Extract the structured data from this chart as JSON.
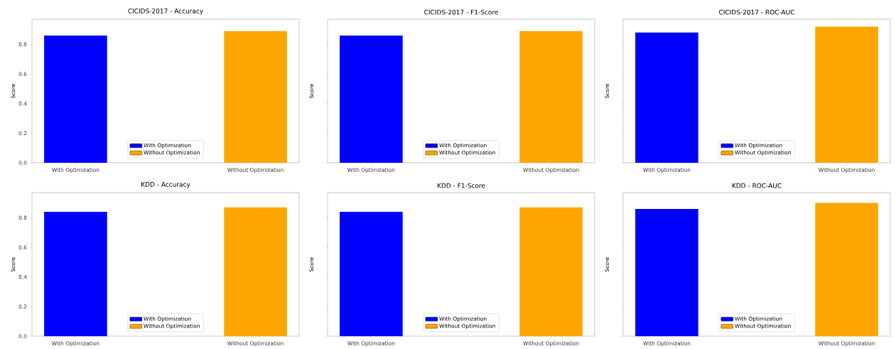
{
  "chart_data": [
    {
      "type": "bar",
      "title": "CICIDS-2017 - Accuracy",
      "ylabel": "Score",
      "categories": [
        "With Optimization",
        "Without Optimization"
      ],
      "series": [
        {
          "name": "With Optimization",
          "color": "#0000ff",
          "values": [
            0.86,
            null
          ]
        },
        {
          "name": "Without Optimization",
          "color": "#ffa500",
          "values": [
            null,
            0.89
          ]
        }
      ],
      "ylim": [
        0,
        0.97
      ],
      "yticks": [
        {
          "value": 0,
          "label": "0.0"
        },
        {
          "value": 0.2,
          "label": "0.2"
        },
        {
          "value": 0.4,
          "label": "0.4"
        },
        {
          "value": 0.6,
          "label": "0.6"
        },
        {
          "value": 0.8,
          "label": "0.8"
        }
      ],
      "legend": "bottom"
    },
    {
      "type": "bar",
      "title": "CICIDS-2017 - F1-Score",
      "ylabel": "Score",
      "categories": [
        "With Optimization",
        "Without Optimization"
      ],
      "series": [
        {
          "name": "With Optimization",
          "color": "#0000ff",
          "values": [
            0.86,
            null
          ]
        },
        {
          "name": "Without Optimization",
          "color": "#ffa500",
          "values": [
            null,
            0.89
          ]
        }
      ],
      "ylim": [
        0,
        0.97
      ],
      "yticks": [
        {
          "value": 0,
          "label": null
        },
        {
          "value": 0.2,
          "label": null
        },
        {
          "value": 0.4,
          "label": null
        },
        {
          "value": 0.6,
          "label": null
        },
        {
          "value": 0.8,
          "label": null
        }
      ],
      "legend": "bottom",
      "tick_labels": "x"
    },
    {
      "type": "bar",
      "title": "CICIDS-2017 - ROC-AUC",
      "ylabel": "Score",
      "categories": [
        "With Optimization",
        "Without Optimization"
      ],
      "series": [
        {
          "name": "With Optimization",
          "color": "#0000ff",
          "values": [
            0.88,
            null
          ]
        },
        {
          "name": "Without Optimization",
          "color": "#ffa500",
          "values": [
            null,
            0.92
          ]
        }
      ],
      "ylim": [
        0,
        0.97
      ],
      "yticks": [
        {
          "value": 0,
          "label": null
        },
        {
          "value": 0.2,
          "label": null
        },
        {
          "value": 0.4,
          "label": null
        },
        {
          "value": 0.6,
          "label": null
        },
        {
          "value": 0.8,
          "label": null
        }
      ],
      "legend": "bottom",
      "tick_labels": "x"
    },
    {
      "type": "bar",
      "title": "KDD - Accuracy",
      "ylabel": "Score",
      "categories": [
        "With Optimization",
        "Without Optimization"
      ],
      "series": [
        {
          "name": "With Optimization",
          "color": "#0000ff",
          "values": [
            0.84,
            null
          ]
        },
        {
          "name": "Without Optimization",
          "color": "#ffa500",
          "values": [
            null,
            0.87
          ]
        }
      ],
      "ylim": [
        0,
        0.97
      ],
      "yticks": [
        {
          "value": 0,
          "label": "0.0"
        },
        {
          "value": 0.2,
          "label": "0.2"
        },
        {
          "value": 0.4,
          "label": "0.4"
        },
        {
          "value": 0.6,
          "label": "0.6"
        },
        {
          "value": 0.8,
          "label": "0.8"
        }
      ],
      "legend": "bottom"
    },
    {
      "type": "bar",
      "title": "KDD - F1-Score",
      "ylabel": "Score",
      "categories": [
        "With Optimization",
        "Without Optimization"
      ],
      "series": [
        {
          "name": "With Optimization",
          "color": "#0000ff",
          "values": [
            0.84,
            null
          ]
        },
        {
          "name": "Without Optimization",
          "color": "#ffa500",
          "values": [
            null,
            0.87
          ]
        }
      ],
      "ylim": [
        0,
        0.97
      ],
      "yticks": [
        {
          "value": 0,
          "label": null
        },
        {
          "value": 0.2,
          "label": null
        },
        {
          "value": 0.4,
          "label": null
        },
        {
          "value": 0.6,
          "label": null
        },
        {
          "value": 0.8,
          "label": null
        }
      ],
      "legend": "bottom",
      "tick_labels": "x"
    },
    {
      "type": "bar",
      "title": "KDD - ROC-AUC",
      "ylabel": "Score",
      "categories": [
        "With Optimization",
        "Without Optimization"
      ],
      "series": [
        {
          "name": "With Optimization",
          "color": "#0000ff",
          "values": [
            0.86,
            null
          ]
        },
        {
          "name": "Without Optimization",
          "color": "#ffa500",
          "values": [
            null,
            0.9
          ]
        }
      ],
      "ylim": [
        0,
        0.97
      ],
      "yticks": [
        {
          "value": 0,
          "label": null
        },
        {
          "value": 0.2,
          "label": null
        },
        {
          "value": 0.4,
          "label": null
        },
        {
          "value": 0.6,
          "label": null
        },
        {
          "value": 0.8,
          "label": null
        }
      ],
      "legend": "bottom",
      "tick_labels": "x"
    }
  ]
}
